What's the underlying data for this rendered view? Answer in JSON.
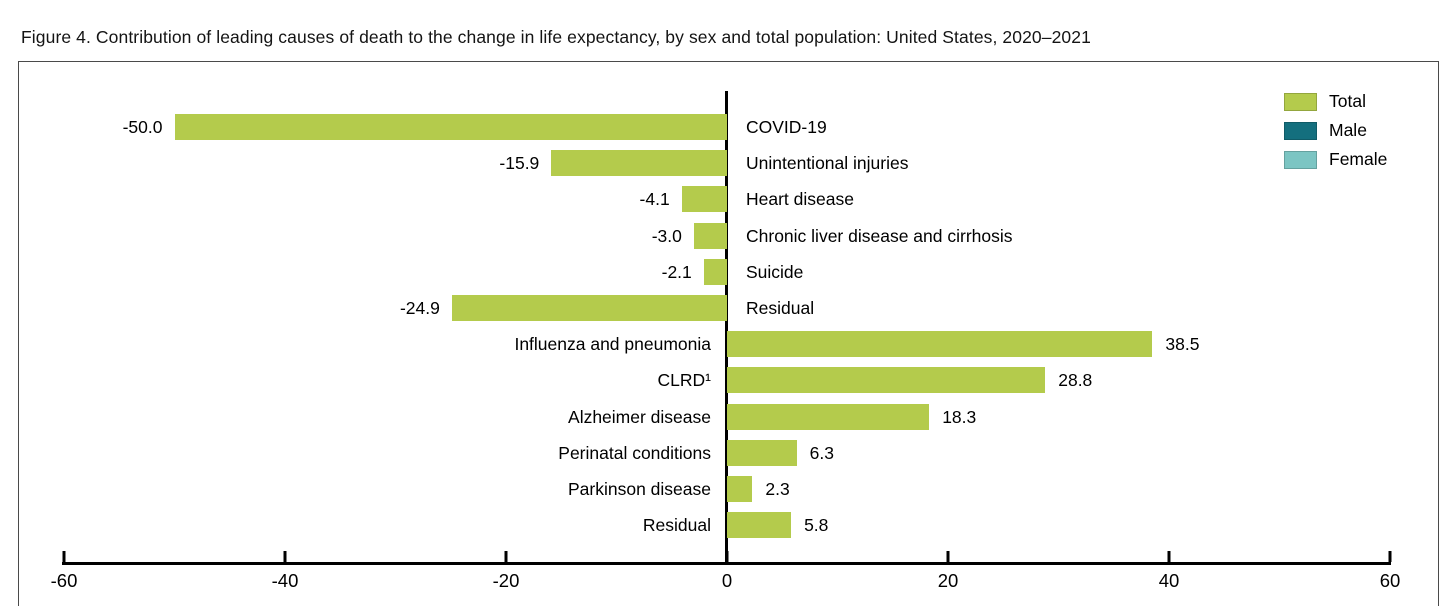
{
  "figure": {
    "title": "Figure 4. Contribution of leading causes of death to the change in life expectancy, by sex and total population: United States, 2020–2021"
  },
  "legend": {
    "position": "top-right",
    "items": [
      {
        "name": "total-swatch",
        "label": "Total",
        "color": "#b4cb4c"
      },
      {
        "name": "male-swatch",
        "label": "Male",
        "color": "#146f7e"
      },
      {
        "name": "female-swatch",
        "label": "Female",
        "color": "#7cc5c3"
      }
    ]
  },
  "chart_data": {
    "type": "bar",
    "orientation": "horizontal",
    "title": "Contribution of leading causes of death to the change in life expectancy, by sex and total population: United States, 2020–2021",
    "series_shown": "Total",
    "bar_color": "#b4cb4c",
    "categories": [
      "COVID-19",
      "Unintentional injuries",
      "Heart disease",
      "Chronic liver disease and cirrhosis",
      "Suicide",
      "Residual",
      "Influenza and pneumonia",
      "CLRD¹",
      "Alzheimer disease",
      "Perinatal conditions",
      "Parkinson disease",
      "Residual"
    ],
    "values": [
      -50.0,
      -15.9,
      -4.1,
      -3.0,
      -2.1,
      -24.9,
      38.5,
      28.8,
      18.3,
      6.3,
      2.3,
      5.8
    ],
    "value_labels": [
      "-50.0",
      "-15.9",
      "-4.1",
      "-3.0",
      "-2.1",
      "-24.9",
      "38.5",
      "28.8",
      "18.3",
      "6.3",
      "2.3",
      "5.8"
    ],
    "xlabel": "",
    "ylabel": "",
    "xlim": [
      -60,
      60
    ],
    "x_ticks": [
      -60,
      -40,
      -20,
      0,
      20,
      40,
      60
    ],
    "x_tick_labels": [
      "-60",
      "-40",
      "-20",
      "0",
      "20",
      "40",
      "60"
    ],
    "grid": false,
    "zero_line": true,
    "legend_entries": [
      "Total",
      "Male",
      "Female"
    ],
    "legend_colors": [
      "#b4cb4c",
      "#146f7e",
      "#7cc5c3"
    ],
    "legend_position": "top-right"
  }
}
